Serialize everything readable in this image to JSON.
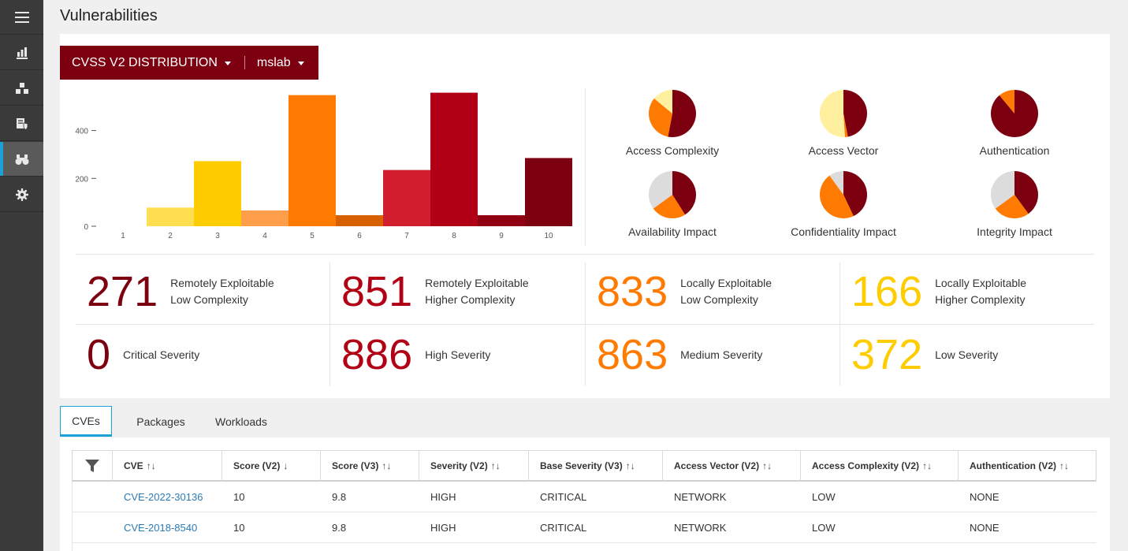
{
  "sidebar": {
    "items": [
      {
        "name": "menu-icon"
      },
      {
        "name": "bar-chart-icon"
      },
      {
        "name": "cubes-icon"
      },
      {
        "name": "server-shield-icon"
      },
      {
        "name": "binoculars-icon",
        "active": true
      },
      {
        "name": "gear-icon"
      }
    ]
  },
  "page": {
    "title": "Vulnerabilities"
  },
  "header": {
    "distribution_label": "CVSS V2 DISTRIBUTION",
    "scope_label": "mslab"
  },
  "colors": {
    "dark_red": "#7d0010",
    "red": "#b10016",
    "crimson": "#d11f30",
    "orange": "#ff7a00",
    "dark_orange": "#d76100",
    "light_orange": "#ff9e4a",
    "yellow": "#ffcc00",
    "light_yellow": "#ffdf50",
    "pale_yellow": "#fff0a0",
    "gray": "#dcdcdc",
    "accent_blue": "#1ba0d7"
  },
  "chart_data": {
    "type": "bar",
    "categories": [
      "1",
      "2",
      "3",
      "4",
      "5",
      "6",
      "7",
      "8",
      "9",
      "10"
    ],
    "values": [
      0,
      78,
      272,
      66,
      548,
      46,
      235,
      558,
      46,
      285
    ],
    "bar_colors": [
      "#ffdf50",
      "#ffdf50",
      "#ffcc00",
      "#ff9e4a",
      "#ff7a00",
      "#d76100",
      "#d11f30",
      "#b10016",
      "#8f0012",
      "#7d0010"
    ],
    "y_ticks": [
      0,
      200,
      400
    ],
    "ylim": [
      0,
      560
    ],
    "grid": false,
    "xlabel": "",
    "ylabel": ""
  },
  "pies": [
    {
      "label": "Access Complexity",
      "slices": [
        {
          "value": 53,
          "color": "#7d0010"
        },
        {
          "value": 33,
          "color": "#ff7a00"
        },
        {
          "value": 14,
          "color": "#fff0a0"
        }
      ]
    },
    {
      "label": "Access Vector",
      "slices": [
        {
          "value": 47,
          "color": "#7d0010"
        },
        {
          "value": 2,
          "color": "#ff7a00"
        },
        {
          "value": 51,
          "color": "#fff0a0"
        }
      ]
    },
    {
      "label": "Authentication",
      "slices": [
        {
          "value": 89,
          "color": "#7d0010"
        },
        {
          "value": 11,
          "color": "#ff7a00"
        }
      ]
    },
    {
      "label": "Availability Impact",
      "slices": [
        {
          "value": 41,
          "color": "#7d0010"
        },
        {
          "value": 24,
          "color": "#ff7a00"
        },
        {
          "value": 35,
          "color": "#dcdcdc"
        }
      ]
    },
    {
      "label": "Confidentiality Impact",
      "slices": [
        {
          "value": 43,
          "color": "#7d0010"
        },
        {
          "value": 47,
          "color": "#ff7a00"
        },
        {
          "value": 10,
          "color": "#dcdcdc"
        }
      ]
    },
    {
      "label": "Integrity Impact",
      "slices": [
        {
          "value": 40,
          "color": "#7d0010"
        },
        {
          "value": 25,
          "color": "#ff7a00"
        },
        {
          "value": 35,
          "color": "#dcdcdc"
        }
      ]
    }
  ],
  "stats": [
    {
      "value": "271",
      "line1": "Remotely Exploitable",
      "line2": "Low Complexity"
    },
    {
      "value": "851",
      "line1": "Remotely Exploitable",
      "line2": "Higher Complexity"
    },
    {
      "value": "833",
      "line1": "Locally Exploitable",
      "line2": "Low Complexity"
    },
    {
      "value": "166",
      "line1": "Locally Exploitable",
      "line2": "Higher Complexity"
    },
    {
      "value": "0",
      "line1": "Critical Severity",
      "line2": ""
    },
    {
      "value": "886",
      "line1": "High Severity",
      "line2": ""
    },
    {
      "value": "863",
      "line1": "Medium Severity",
      "line2": ""
    },
    {
      "value": "372",
      "line1": "Low Severity",
      "line2": ""
    }
  ],
  "tabs": [
    {
      "label": "CVEs",
      "active": true
    },
    {
      "label": "Packages"
    },
    {
      "label": "Workloads"
    }
  ],
  "table": {
    "headers": [
      {
        "label": "CVE",
        "sort": "↑↓"
      },
      {
        "label": "Score (V2)",
        "sort": "↓"
      },
      {
        "label": "Score (V3)",
        "sort": "↑↓"
      },
      {
        "label": "Severity (V2)",
        "sort": "↑↓"
      },
      {
        "label": "Base Severity (V3)",
        "sort": "↑↓"
      },
      {
        "label": "Access Vector (V2)",
        "sort": "↑↓"
      },
      {
        "label": "Access Complexity (V2)",
        "sort": "↑↓"
      },
      {
        "label": "Authentication (V2)",
        "sort": "↑↓"
      }
    ],
    "rows": [
      {
        "cve": "CVE-2022-30136",
        "score_v2": "10",
        "score_v3": "9.8",
        "severity_v2": "HIGH",
        "base_severity_v3": "CRITICAL",
        "access_vector": "NETWORK",
        "access_complexity": "LOW",
        "authentication": "NONE"
      },
      {
        "cve": "CVE-2018-8540",
        "score_v2": "10",
        "score_v3": "9.8",
        "severity_v2": "HIGH",
        "base_severity_v3": "CRITICAL",
        "access_vector": "NETWORK",
        "access_complexity": "LOW",
        "authentication": "NONE"
      }
    ]
  }
}
